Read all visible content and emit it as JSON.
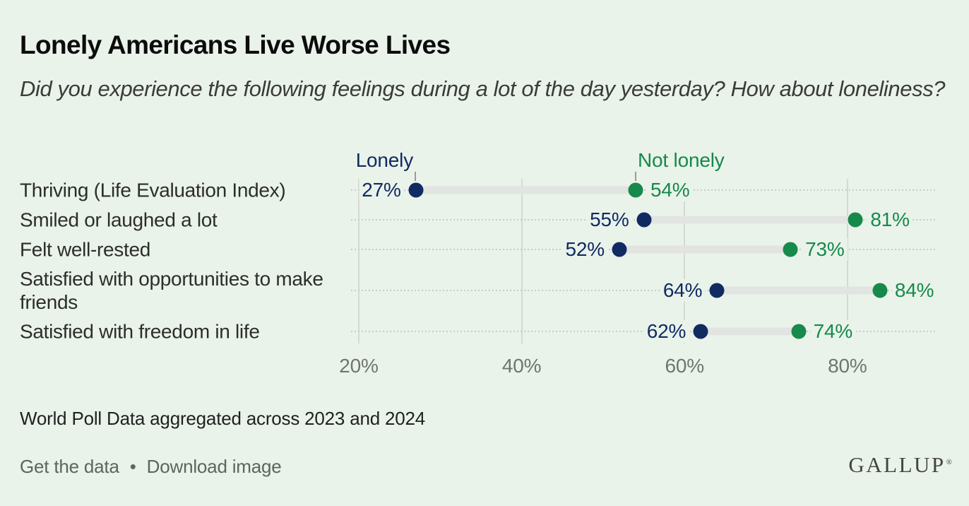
{
  "page": {
    "background_color": "#e9f3ea"
  },
  "header": {
    "title": "Lonely Americans Live Worse Lives",
    "subtitle": "Did you experience the following feelings during a lot of the day yesterday? How about loneliness?"
  },
  "chart_data": {
    "type": "dumbbell",
    "title": "Lonely Americans Live Worse Lives",
    "question": "Did you experience the following feelings during a lot of the day yesterday? How about loneliness?",
    "categories": [
      "Thriving (Life Evaluation Index)",
      "Smiled or laughed a lot",
      "Felt well-rested",
      "Satisfied with opportunities to make friends",
      "Satisfied with freedom in life"
    ],
    "series": [
      {
        "name": "Lonely",
        "color": "#122a62",
        "values": [
          27,
          55,
          52,
          64,
          62
        ],
        "labels": [
          "27%",
          "55%",
          "52%",
          "64%",
          "62%"
        ]
      },
      {
        "name": "Not lonely",
        "color": "#17894a",
        "values": [
          54,
          81,
          73,
          84,
          74
        ],
        "labels": [
          "54%",
          "81%",
          "73%",
          "84%",
          "74%"
        ]
      }
    ],
    "x_axis": {
      "ticks": [
        {
          "value": 20,
          "label": "20%"
        },
        {
          "value": 40,
          "label": "40%"
        },
        {
          "value": 60,
          "label": "60%"
        },
        {
          "value": 80,
          "label": "80%"
        }
      ],
      "range": [
        19,
        91
      ],
      "grid": true
    },
    "legend": {
      "lonely_label": "Lonely",
      "not_lonely_label": "Not lonely",
      "position": "top, ticks aligned to first-row dots"
    },
    "connector_color": "#e2e4e1",
    "row_guide_style": "dotted"
  },
  "footer": {
    "source": "World Poll Data aggregated across 2023 and 2024",
    "get_data": "Get the data",
    "separator": "•",
    "download": "Download image",
    "logo": "GALLUP",
    "logo_reg": "®"
  }
}
